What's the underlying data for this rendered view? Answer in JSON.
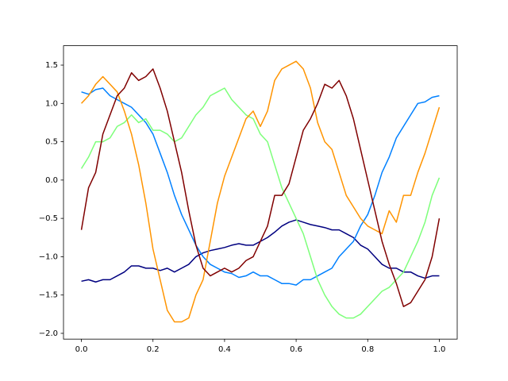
{
  "chart_data": {
    "type": "line",
    "x": [
      0,
      0.02,
      0.04,
      0.06,
      0.08,
      0.1,
      0.12,
      0.14,
      0.16,
      0.18,
      0.2,
      0.22,
      0.24,
      0.26,
      0.28,
      0.3,
      0.32,
      0.34,
      0.36,
      0.38,
      0.4,
      0.42,
      0.44,
      0.46,
      0.48,
      0.5,
      0.52,
      0.54,
      0.56,
      0.58,
      0.6,
      0.62,
      0.64,
      0.66,
      0.68,
      0.7,
      0.72,
      0.74,
      0.76,
      0.78,
      0.8,
      0.82,
      0.84,
      0.86,
      0.88,
      0.9,
      0.92,
      0.94,
      0.96,
      0.98,
      1
    ],
    "series": [
      {
        "color": "#000080",
        "values": [
          -1.32,
          -1.3,
          -1.33,
          -1.3,
          -1.3,
          -1.25,
          -1.2,
          -1.12,
          -1.12,
          -1.15,
          -1.15,
          -1.18,
          -1.15,
          -1.2,
          -1.15,
          -1.1,
          -1.0,
          -0.95,
          -0.92,
          -0.9,
          -0.88,
          -0.85,
          -0.83,
          -0.85,
          -0.85,
          -0.8,
          -0.75,
          -0.68,
          -0.6,
          -0.55,
          -0.52,
          -0.55,
          -0.58,
          -0.6,
          -0.62,
          -0.65,
          -0.65,
          -0.7,
          -0.75,
          -0.85,
          -0.9,
          -1.0,
          -1.1,
          -1.15,
          -1.15,
          -1.2,
          -1.2,
          -1.25,
          -1.28,
          -1.25,
          -1.25
        ]
      },
      {
        "color": "#0080ff",
        "values": [
          1.15,
          1.12,
          1.18,
          1.2,
          1.1,
          1.05,
          1.0,
          0.95,
          0.85,
          0.75,
          0.6,
          0.35,
          0.1,
          -0.2,
          -0.45,
          -0.65,
          -0.85,
          -1.0,
          -1.1,
          -1.15,
          -1.2,
          -1.22,
          -1.27,
          -1.25,
          -1.2,
          -1.25,
          -1.25,
          -1.3,
          -1.35,
          -1.35,
          -1.37,
          -1.3,
          -1.3,
          -1.25,
          -1.2,
          -1.15,
          -1.0,
          -0.9,
          -0.8,
          -0.6,
          -0.45,
          -0.2,
          0.1,
          0.3,
          0.55,
          0.7,
          0.85,
          1.0,
          1.02,
          1.08,
          1.1
        ]
      },
      {
        "color": "#7dff7a",
        "values": [
          0.15,
          0.3,
          0.5,
          0.5,
          0.55,
          0.7,
          0.75,
          0.85,
          0.75,
          0.8,
          0.65,
          0.65,
          0.6,
          0.5,
          0.55,
          0.7,
          0.85,
          0.95,
          1.1,
          1.15,
          1.2,
          1.05,
          0.95,
          0.85,
          0.8,
          0.6,
          0.5,
          0.2,
          -0.1,
          -0.3,
          -0.5,
          -0.7,
          -1.0,
          -1.3,
          -1.5,
          -1.65,
          -1.75,
          -1.8,
          -1.8,
          -1.75,
          -1.65,
          -1.55,
          -1.45,
          -1.4,
          -1.3,
          -1.2,
          -1.0,
          -0.8,
          -0.55,
          -0.2,
          0.03
        ]
      },
      {
        "color": "#ff9400",
        "values": [
          1.0,
          1.1,
          1.25,
          1.35,
          1.25,
          1.15,
          0.9,
          0.6,
          0.2,
          -0.3,
          -0.9,
          -1.3,
          -1.7,
          -1.85,
          -1.85,
          -1.8,
          -1.5,
          -1.3,
          -0.8,
          -0.3,
          0.05,
          0.3,
          0.55,
          0.8,
          0.9,
          0.7,
          0.9,
          1.3,
          1.45,
          1.5,
          1.55,
          1.45,
          1.2,
          0.75,
          0.5,
          0.4,
          0.1,
          -0.2,
          -0.35,
          -0.5,
          -0.6,
          -0.65,
          -0.7,
          -0.4,
          -0.55,
          -0.2,
          -0.2,
          0.1,
          0.35,
          0.65,
          0.95
        ]
      },
      {
        "color": "#800000",
        "values": [
          -0.65,
          -0.1,
          0.1,
          0.6,
          0.85,
          1.1,
          1.2,
          1.4,
          1.3,
          1.35,
          1.45,
          1.2,
          0.9,
          0.5,
          0.1,
          -0.4,
          -0.85,
          -1.15,
          -1.25,
          -1.2,
          -1.15,
          -1.2,
          -1.15,
          -1.05,
          -1.0,
          -0.8,
          -0.6,
          -0.2,
          -0.2,
          -0.05,
          0.3,
          0.65,
          0.8,
          1.0,
          1.25,
          1.2,
          1.3,
          1.1,
          0.8,
          0.4,
          0.0,
          -0.4,
          -0.8,
          -1.1,
          -1.35,
          -1.65,
          -1.6,
          -1.45,
          -1.3,
          -1.0,
          -0.5
        ]
      }
    ],
    "xlim": [
      -0.05,
      1.05
    ],
    "ylim": [
      -2.075,
      1.753
    ],
    "xticks": [
      {
        "value": 0,
        "label": "0.0"
      },
      0.2,
      0.4,
      0.6,
      0.8,
      {
        "value": 1,
        "label": "1.0"
      }
    ],
    "yticks": [
      {
        "value": -2,
        "label": "−2.0"
      },
      {
        "value": -1.5,
        "label": "−1.5"
      },
      {
        "value": -1,
        "label": "−1.0"
      },
      {
        "value": -0.5,
        "label": "−0.5"
      },
      {
        "value": 0,
        "label": "0.0"
      },
      0.5,
      {
        "value": 1,
        "label": "1.0"
      },
      1.5
    ]
  }
}
